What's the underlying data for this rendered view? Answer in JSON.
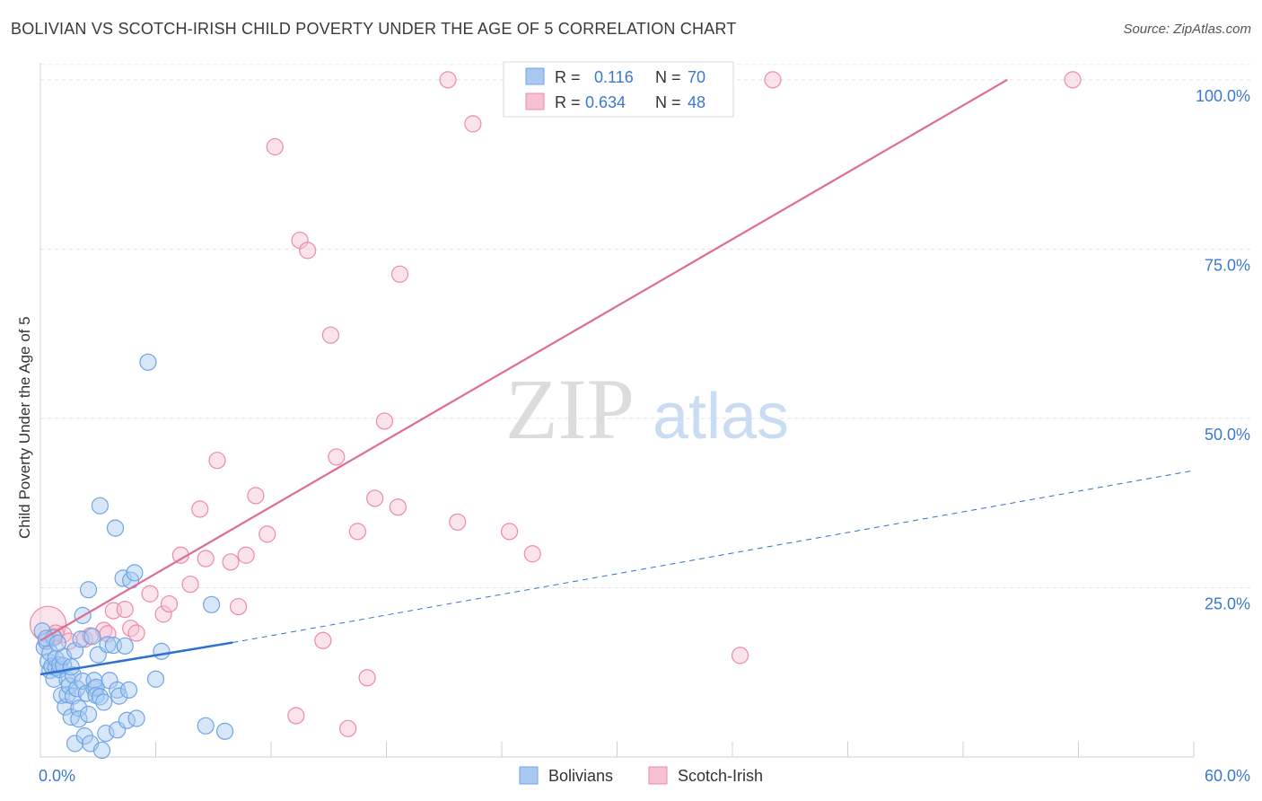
{
  "header": {
    "title": "BOLIVIAN VS SCOTCH-IRISH CHILD POVERTY UNDER THE AGE OF 5 CORRELATION CHART",
    "source": "Source: ZipAtlas.com"
  },
  "watermark": {
    "zip": "ZIP",
    "atlas": "atlas"
  },
  "chart_data": {
    "type": "scatter",
    "title": "BOLIVIAN VS SCOTCH-IRISH CHILD POVERTY UNDER THE AGE OF 5 CORRELATION CHART",
    "xlabel": "",
    "ylabel": "Child Poverty Under the Age of 5",
    "xlim": [
      0,
      60
    ],
    "ylim": [
      0,
      102.5
    ],
    "x_tick_labels": {
      "min": "0.0%",
      "max": "60.0%"
    },
    "y_ticks": [
      25,
      50,
      75,
      100
    ],
    "y_tick_labels": [
      "25.0%",
      "50.0%",
      "75.0%",
      "100.0%"
    ],
    "grid": true,
    "legend": {
      "placement": "top-center",
      "rows": [
        {
          "r_label": "R =",
          "r_value": "0.116",
          "n_label": "N =",
          "n_value": "70"
        },
        {
          "r_label": "R =",
          "r_value": "0.634",
          "n_label": "N =",
          "n_value": "48"
        }
      ]
    },
    "bottom_legend": [
      "Bolivians",
      "Scotch-Irish"
    ],
    "series": [
      {
        "name": "Bolivians",
        "color": "#6fa4e6",
        "fill": "#a9c9f0",
        "line_color": "#2f6fcf",
        "trend": {
          "x0": 0,
          "y0": 12.2,
          "x1": 10,
          "y1": 16.9,
          "dash_x1": 60,
          "dash_y1": 42.3
        },
        "points": [
          [
            0.1,
            18.6
          ],
          [
            0.2,
            16.2
          ],
          [
            0.3,
            17.1
          ],
          [
            0.4,
            14.1
          ],
          [
            0.5,
            12.8
          ],
          [
            0.5,
            15.4
          ],
          [
            0.6,
            13.4
          ],
          [
            0.7,
            17.6
          ],
          [
            0.7,
            11.5
          ],
          [
            0.8,
            13.2
          ],
          [
            0.8,
            14.5
          ],
          [
            1.0,
            12.9
          ],
          [
            1.0,
            13.6
          ],
          [
            1.1,
            9.1
          ],
          [
            1.2,
            13.5
          ],
          [
            1.2,
            14.8
          ],
          [
            1.3,
            7.4
          ],
          [
            1.4,
            11.4
          ],
          [
            1.4,
            9.2
          ],
          [
            1.5,
            10.5
          ],
          [
            1.6,
            5.9
          ],
          [
            1.7,
            9.0
          ],
          [
            1.7,
            12.1
          ],
          [
            1.8,
            15.7
          ],
          [
            1.8,
            2.0
          ],
          [
            1.9,
            10.1
          ],
          [
            2.0,
            7.2
          ],
          [
            2.0,
            5.6
          ],
          [
            2.1,
            17.4
          ],
          [
            2.2,
            20.9
          ],
          [
            2.2,
            11.2
          ],
          [
            2.3,
            3.1
          ],
          [
            2.4,
            9.4
          ],
          [
            2.5,
            6.3
          ],
          [
            2.5,
            24.7
          ],
          [
            2.6,
            2.0
          ],
          [
            2.7,
            17.8
          ],
          [
            2.8,
            10.1
          ],
          [
            2.8,
            11.3
          ],
          [
            2.9,
            10.3
          ],
          [
            2.9,
            9.1
          ],
          [
            3.0,
            15.1
          ],
          [
            3.1,
            8.9
          ],
          [
            3.1,
            37.1
          ],
          [
            3.2,
            1.0
          ],
          [
            3.3,
            8.1
          ],
          [
            3.4,
            3.5
          ],
          [
            3.5,
            16.6
          ],
          [
            3.6,
            11.3
          ],
          [
            3.8,
            16.5
          ],
          [
            3.9,
            33.8
          ],
          [
            4.0,
            4.0
          ],
          [
            4.0,
            9.9
          ],
          [
            4.1,
            9.0
          ],
          [
            4.3,
            26.4
          ],
          [
            4.4,
            16.4
          ],
          [
            4.5,
            5.4
          ],
          [
            4.6,
            9.9
          ],
          [
            4.7,
            26.1
          ],
          [
            4.9,
            27.2
          ],
          [
            5.0,
            5.7
          ],
          [
            5.6,
            58.3
          ],
          [
            6.0,
            11.5
          ],
          [
            6.3,
            15.6
          ],
          [
            8.6,
            4.6
          ],
          [
            8.9,
            22.5
          ],
          [
            9.6,
            3.8
          ],
          [
            0.3,
            17.5
          ],
          [
            1.6,
            13.3
          ],
          [
            0.9,
            16.8
          ]
        ]
      },
      {
        "name": "Scotch-Irish",
        "color": "#ec8aa8",
        "fill": "#f6c2d2",
        "line_color": "#e06c93",
        "trend": {
          "x0": 0,
          "y0": 17.2,
          "x1": 50.3,
          "y1": 100
        },
        "points": [
          [
            0.4,
            19.6
          ],
          [
            0.7,
            17.8
          ],
          [
            1.2,
            18.1
          ],
          [
            1.5,
            17.1
          ],
          [
            2.3,
            17.4
          ],
          [
            3.3,
            18.7
          ],
          [
            3.5,
            18.2
          ],
          [
            3.8,
            21.6
          ],
          [
            4.4,
            21.8
          ],
          [
            4.7,
            19.0
          ],
          [
            5.0,
            18.3
          ],
          [
            5.7,
            24.1
          ],
          [
            6.4,
            21.1
          ],
          [
            6.7,
            22.6
          ],
          [
            7.3,
            29.8
          ],
          [
            7.8,
            25.5
          ],
          [
            8.3,
            36.6
          ],
          [
            8.6,
            29.3
          ],
          [
            9.2,
            43.8
          ],
          [
            9.9,
            28.8
          ],
          [
            10.3,
            22.2
          ],
          [
            10.7,
            29.8
          ],
          [
            11.2,
            38.6
          ],
          [
            11.8,
            32.9
          ],
          [
            12.2,
            90.1
          ],
          [
            13.3,
            6.1
          ],
          [
            13.5,
            76.3
          ],
          [
            13.9,
            74.8
          ],
          [
            14.7,
            17.2
          ],
          [
            15.1,
            62.3
          ],
          [
            15.4,
            44.3
          ],
          [
            16.0,
            4.2
          ],
          [
            16.5,
            33.3
          ],
          [
            17.0,
            11.7
          ],
          [
            17.4,
            38.2
          ],
          [
            17.9,
            49.6
          ],
          [
            18.6,
            36.9
          ],
          [
            18.7,
            71.3
          ],
          [
            21.2,
            100.0
          ],
          [
            21.7,
            34.7
          ],
          [
            22.5,
            93.5
          ],
          [
            24.4,
            33.3
          ],
          [
            25.6,
            30.0
          ],
          [
            36.4,
            15.0
          ],
          [
            38.1,
            100.0
          ],
          [
            53.7,
            100.0
          ],
          [
            0.8,
            18.3
          ],
          [
            2.6,
            17.9
          ]
        ]
      }
    ]
  }
}
